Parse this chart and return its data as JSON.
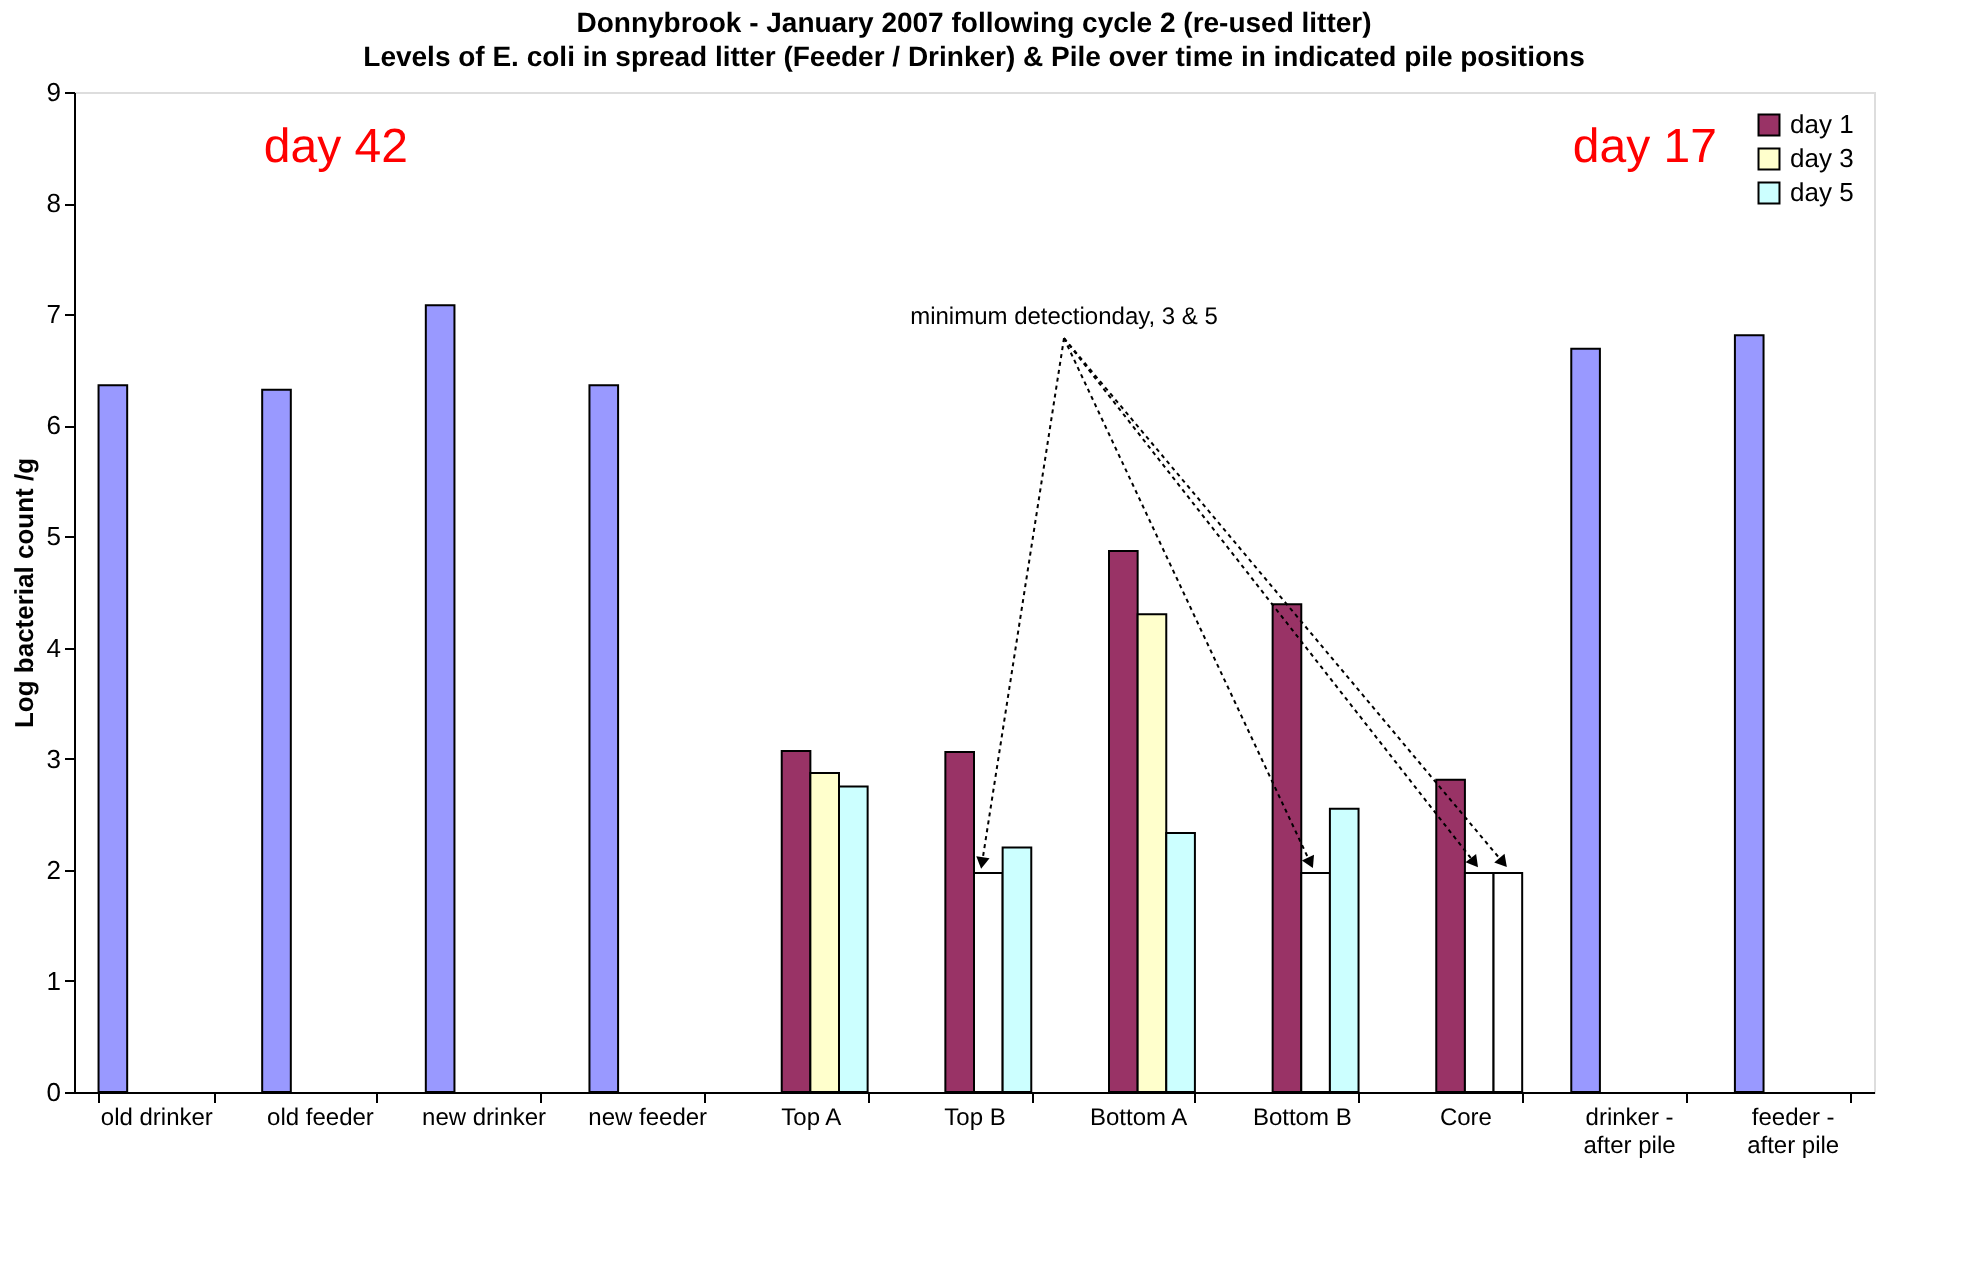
{
  "chart_data": {
    "type": "bar",
    "title": "Donnybrook - January  2007 following cycle 2 (re-used litter)",
    "subtitle": "Levels of E. coli in spread litter (Feeder / Drinker) & Pile over time in indicated pile positions",
    "ylabel": "Log bacterial count /g",
    "categories": [
      "old drinker",
      "old feeder",
      "new drinker",
      "new feeder",
      "Top A",
      "Top B",
      "Bottom A",
      "Bottom B",
      "Core",
      "drinker - after pile",
      "feeder - after pile"
    ],
    "series": [
      {
        "color": "#9999ff",
        "values": [
          6.36,
          6.32,
          7.08,
          6.36,
          null,
          null,
          null,
          null,
          null,
          6.69,
          6.81
        ]
      },
      {
        "name": "day 1",
        "color": "#993366",
        "values": [
          null,
          null,
          null,
          null,
          3.07,
          3.06,
          4.87,
          4.39,
          2.81,
          null,
          null
        ]
      },
      {
        "name": "day 3",
        "color": "#ffffcc",
        "values": [
          null,
          null,
          null,
          null,
          2.87,
          1.97,
          4.3,
          1.97,
          1.97,
          null,
          null
        ],
        "colors": [
          "#ffffcc",
          "#ffffcc",
          "#ffffcc",
          "#ffffcc",
          "#ffffcc",
          "#ffffff",
          "#ffffcc",
          "#ffffff",
          "#ffffff",
          "#ffffcc",
          "#ffffcc"
        ]
      },
      {
        "name": "day 5",
        "color": "#ccffff",
        "values": [
          null,
          null,
          null,
          null,
          2.75,
          2.2,
          2.33,
          2.55,
          1.97,
          null,
          null
        ],
        "colors": [
          "#ccffff",
          "#ccffff",
          "#ccffff",
          "#ccffff",
          "#ccffff",
          "#ccffff",
          "#ccffff",
          "#ccffff",
          "#ffffff",
          "#ccffff",
          "#ccffff"
        ]
      }
    ],
    "ylim": [
      0,
      9
    ],
    "yticks": [
      0,
      1,
      2,
      3,
      4,
      5,
      6,
      7,
      8,
      9
    ],
    "grid": false,
    "legend": "top right",
    "annotations": [
      "day 42",
      "day 17",
      {
        "text": "minimum detectionday, 3 & 5",
        "x": "Top B",
        "y": 1.97
      }
    ]
  }
}
